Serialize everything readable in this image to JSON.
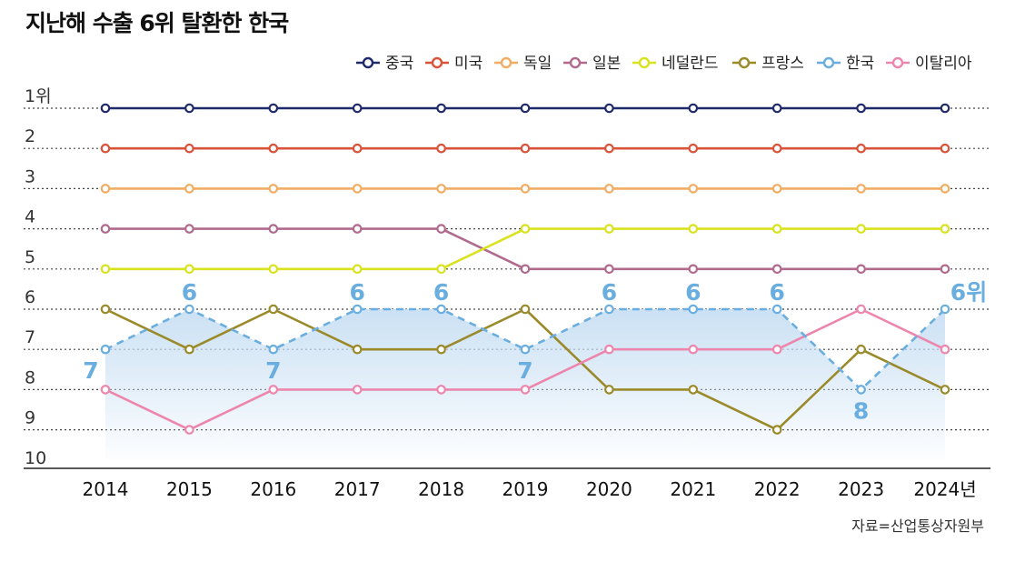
{
  "title": "지난해 수출 6위 탈환한 한국",
  "source": "자료=산업통상자원부",
  "chart_data": {
    "type": "line",
    "title": "지난해 수출 6위 탈환한 한국",
    "x": [
      "2014",
      "2015",
      "2016",
      "2017",
      "2018",
      "2019",
      "2020",
      "2021",
      "2022",
      "2023",
      "2024"
    ],
    "x_tick_labels": [
      "2014",
      "2015",
      "2016",
      "2017",
      "2018",
      "2019",
      "2020",
      "2021",
      "2022",
      "2023",
      "2024년"
    ],
    "y_tick_labels": [
      "1위",
      "2",
      "3",
      "4",
      "5",
      "6",
      "7",
      "8",
      "9",
      "10"
    ],
    "ylim": [
      1,
      10
    ],
    "y_inverted": true,
    "legend_position": "top-right",
    "series": [
      {
        "name": "중국",
        "color": "#1f2a6b",
        "values": [
          1,
          1,
          1,
          1,
          1,
          1,
          1,
          1,
          1,
          1,
          1
        ]
      },
      {
        "name": "미국",
        "color": "#d9533a",
        "values": [
          2,
          2,
          2,
          2,
          2,
          2,
          2,
          2,
          2,
          2,
          2
        ]
      },
      {
        "name": "독일",
        "color": "#f0ad63",
        "values": [
          3,
          3,
          3,
          3,
          3,
          3,
          3,
          3,
          3,
          3,
          3
        ]
      },
      {
        "name": "일본",
        "color": "#b06a8e",
        "values": [
          4,
          4,
          4,
          4,
          4,
          5,
          5,
          5,
          5,
          5,
          5
        ]
      },
      {
        "name": "네덜란드",
        "color": "#d9e21e",
        "values": [
          5,
          5,
          5,
          5,
          5,
          4,
          4,
          4,
          4,
          4,
          4
        ]
      },
      {
        "name": "프랑스",
        "color": "#9a8a2a",
        "values": [
          6,
          7,
          6,
          7,
          7,
          6,
          8,
          8,
          9,
          7,
          8
        ]
      },
      {
        "name": "한국",
        "color": "#6aaee0",
        "dashed": true,
        "values": [
          7,
          6,
          7,
          6,
          6,
          7,
          6,
          6,
          6,
          8,
          6
        ]
      },
      {
        "name": "이탈리아",
        "color": "#ec86ac",
        "values": [
          8,
          9,
          8,
          8,
          8,
          8,
          7,
          7,
          7,
          6,
          7
        ]
      }
    ],
    "korea_labels": [
      "7",
      "6",
      "7",
      "6",
      "6",
      "7",
      "6",
      "6",
      "6",
      "8",
      "6위"
    ]
  }
}
